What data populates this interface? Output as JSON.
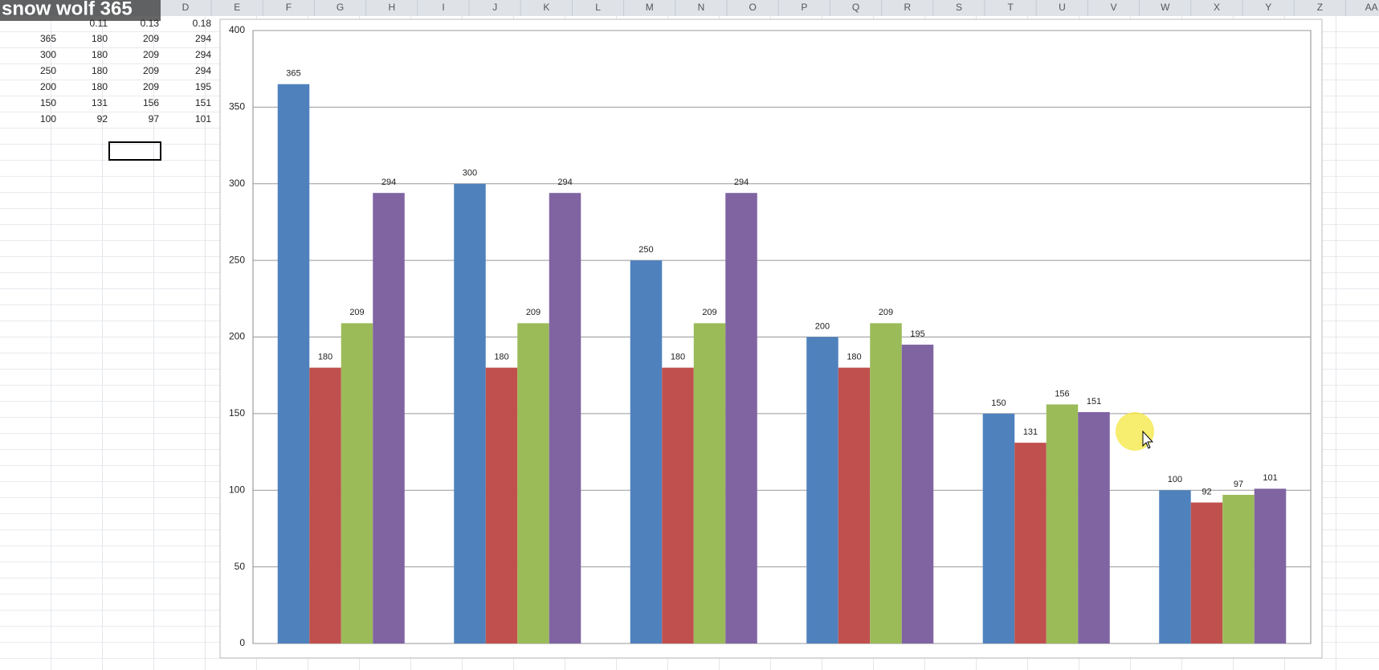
{
  "overlay_title": "snow wolf 365",
  "spreadsheet": {
    "columns": [
      "D",
      "E",
      "F",
      "G",
      "H",
      "I",
      "J",
      "K",
      "L",
      "M",
      "N",
      "O",
      "P",
      "Q",
      "R",
      "S",
      "T",
      "U",
      "V",
      "W",
      "X",
      "Y",
      "Z",
      "AA"
    ],
    "header": [
      0.11,
      0.13,
      0.18
    ],
    "rows": [
      [
        365,
        180,
        209,
        294
      ],
      [
        300,
        180,
        209,
        294
      ],
      [
        250,
        180,
        209,
        294
      ],
      [
        200,
        180,
        209,
        195
      ],
      [
        150,
        131,
        156,
        151
      ],
      [
        100,
        92,
        97,
        101
      ]
    ]
  },
  "chart_data": {
    "type": "bar",
    "categories": [
      null,
      null,
      null,
      null,
      null,
      null
    ],
    "series": [
      {
        "color": "#4f81bd",
        "values": [
          365,
          300,
          250,
          200,
          150,
          100
        ]
      },
      {
        "color": "#c0504d",
        "values": [
          180,
          180,
          180,
          180,
          131,
          92
        ]
      },
      {
        "color": "#9bbb59",
        "values": [
          209,
          209,
          209,
          209,
          156,
          97
        ]
      },
      {
        "color": "#8064a2",
        "values": [
          294,
          294,
          294,
          195,
          151,
          101
        ]
      }
    ],
    "ylim": [
      0,
      400
    ],
    "yticks": [
      0,
      50,
      100,
      150,
      200,
      250,
      300,
      350,
      400
    ],
    "grid": true,
    "data_labels": true
  }
}
